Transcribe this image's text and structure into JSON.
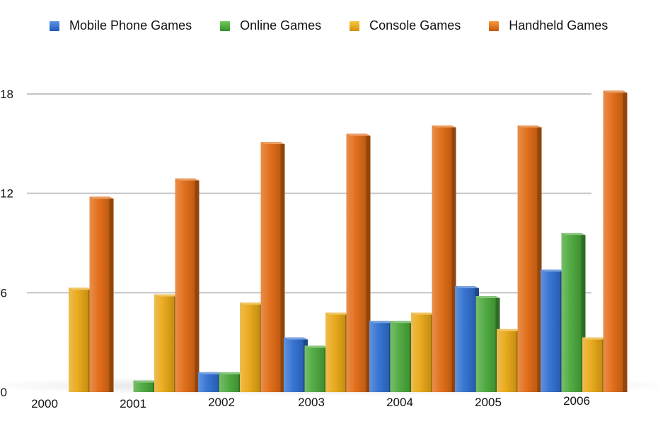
{
  "chart_data": {
    "type": "bar",
    "categories": [
      "2000",
      "2001",
      "2002",
      "2003",
      "2004",
      "2005",
      "2006"
    ],
    "series": [
      {
        "name": "Mobile Phone Games",
        "color": "#2f6fd0",
        "values": [
          0,
          0,
          1.2,
          3.3,
          4.3,
          6.4,
          7.4
        ]
      },
      {
        "name": "Online Games",
        "color": "#4aa83a",
        "values": [
          0,
          0.7,
          1.2,
          2.8,
          4.3,
          5.8,
          9.6
        ]
      },
      {
        "name": "Console Games",
        "color": "#e8a714",
        "values": [
          6.3,
          5.9,
          5.4,
          4.8,
          4.8,
          3.8,
          3.3
        ]
      },
      {
        "name": "Handheld Games",
        "color": "#e06a12",
        "values": [
          11.8,
          12.9,
          15.1,
          15.6,
          16.1,
          16.1,
          18.2
        ]
      }
    ],
    "yticks": [
      "0",
      "6",
      "12",
      "18"
    ],
    "ylim": [
      0,
      18.6
    ],
    "grid": true,
    "legend_position": "top"
  }
}
